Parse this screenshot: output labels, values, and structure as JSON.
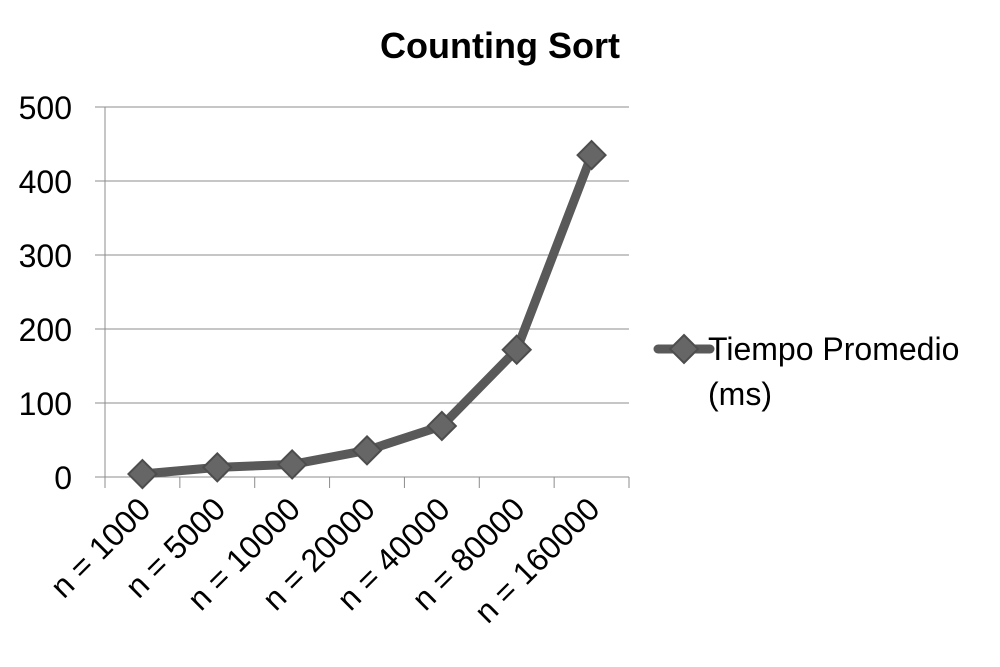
{
  "chart_data": {
    "type": "line",
    "title": "Counting Sort",
    "xlabel": "",
    "ylabel": "",
    "categories": [
      "n = 1000",
      "n = 5000",
      "n = 10000",
      "n = 20000",
      "n = 40000",
      "n = 80000",
      "n = 160000"
    ],
    "series": [
      {
        "name": "Tiempo Promedio (ms)",
        "values": [
          4,
          13,
          17,
          36,
          69,
          172,
          435
        ],
        "color": "#595959",
        "marker": "diamond"
      }
    ],
    "ylim": [
      0,
      500
    ],
    "yticks": [
      0,
      100,
      200,
      300,
      400,
      500
    ],
    "grid": "horizontal",
    "legend": "right",
    "legend_lines": [
      "Tiempo Promedio",
      "(ms)"
    ]
  }
}
